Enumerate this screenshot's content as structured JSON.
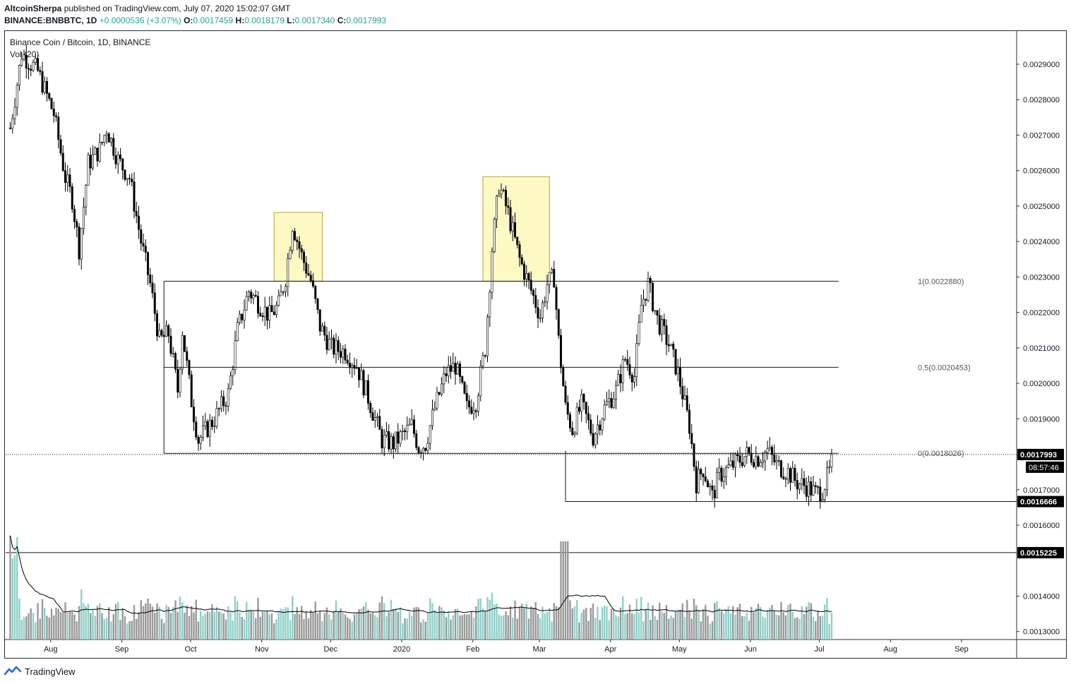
{
  "header": {
    "publisher": "AltcoinSherpa",
    "published_text": " published on TradingView.com, July 07, 2020 15:02:07 GMT"
  },
  "ohlc": {
    "symbol": "BINANCE:BNBBTC, 1D",
    "change": "+0.0000536 (+3.07%)",
    "o_label": "O:",
    "o": "0.0017459",
    "h_label": "H:",
    "h": "0.0018179",
    "l_label": "L:",
    "l": "0.0017340",
    "c_label": "C:",
    "c": "0.0017993"
  },
  "legend": {
    "title": "Binance Coin / Bitcoin, 1D, BINANCE",
    "volume": "Vol (20)"
  },
  "footer": {
    "brand": "TradingView"
  },
  "colors": {
    "up": "#ffffff",
    "down": "#000000",
    "wick": "#000000",
    "vol_up": "#8fd0c8",
    "vol_down": "#9a9a9a",
    "ma": "#000000",
    "highlight": "#fdf9c4",
    "highlight_border": "#b8a33c"
  },
  "chart_data": {
    "type": "candlestick",
    "title": "Binance Coin / Bitcoin, 1D, BINANCE",
    "x_ticks": [
      "Aug",
      "Sep",
      "Oct",
      "Nov",
      "Dec",
      "2020",
      "Feb",
      "Mar",
      "Apr",
      "May",
      "Jun",
      "Jul",
      "Aug",
      "Sep"
    ],
    "y_ticks": [
      "0.0029000",
      "0.0028000",
      "0.0027000",
      "0.0026000",
      "0.0025000",
      "0.0024000",
      "0.0023000",
      "0.0022000",
      "0.0021000",
      "0.0020000",
      "0.0019000",
      "0.0017000",
      "0.0016000",
      "0.0014000",
      "0.0013000"
    ],
    "ylim": [
      0.00126,
      0.00297
    ],
    "price_labels": [
      {
        "value": 0.0017993,
        "text": "0.0017993",
        "style": "current"
      },
      {
        "value": 0.0016666,
        "text": "0.0016666",
        "style": "level"
      },
      {
        "value": 0.0015225,
        "text": "0.0015225",
        "style": "level"
      }
    ],
    "countdown": "08:57:46",
    "fib_levels": [
      {
        "ratio": "1",
        "value": 0.002288,
        "text": "1(0.0022880)"
      },
      {
        "ratio": "0.5",
        "value": 0.0020453,
        "text": "0.5(0.0020453)"
      },
      {
        "ratio": "0",
        "value": 0.0018026,
        "text": "0(0.0018026)"
      }
    ],
    "highlight_boxes": [
      {
        "from": "2019-11-07",
        "to": "2019-11-28",
        "low": 0.002288,
        "high": 0.002482
      },
      {
        "from": "2020-02-06",
        "to": "2020-03-06",
        "low": 0.002288,
        "high": 0.002583
      }
    ],
    "close_series": [
      {
        "date": "2019-07-15",
        "close": 0.00272
      },
      {
        "date": "2019-07-20",
        "close": 0.00293
      },
      {
        "date": "2019-07-27",
        "close": 0.00288
      },
      {
        "date": "2019-08-03",
        "close": 0.00276
      },
      {
        "date": "2019-08-08",
        "close": 0.00258
      },
      {
        "date": "2019-08-11",
        "close": 0.00252
      },
      {
        "date": "2019-08-14",
        "close": 0.00238
      },
      {
        "date": "2019-08-18",
        "close": 0.00262
      },
      {
        "date": "2019-08-23",
        "close": 0.00266
      },
      {
        "date": "2019-08-26",
        "close": 0.00272
      },
      {
        "date": "2019-08-31",
        "close": 0.00263
      },
      {
        "date": "2019-09-05",
        "close": 0.00258
      },
      {
        "date": "2019-09-10",
        "close": 0.0024
      },
      {
        "date": "2019-09-14",
        "close": 0.00228
      },
      {
        "date": "2019-09-18",
        "close": 0.00212
      },
      {
        "date": "2019-09-22",
        "close": 0.00214
      },
      {
        "date": "2019-09-26",
        "close": 0.00198
      },
      {
        "date": "2019-09-28",
        "close": 0.00215
      },
      {
        "date": "2019-10-02",
        "close": 0.00195
      },
      {
        "date": "2019-10-05",
        "close": 0.00184
      },
      {
        "date": "2019-10-12",
        "close": 0.0019
      },
      {
        "date": "2019-10-18",
        "close": 0.00197
      },
      {
        "date": "2019-10-22",
        "close": 0.00215
      },
      {
        "date": "2019-10-27",
        "close": 0.00226
      },
      {
        "date": "2019-11-01",
        "close": 0.00222
      },
      {
        "date": "2019-11-05",
        "close": 0.00219
      },
      {
        "date": "2019-11-09",
        "close": 0.00222
      },
      {
        "date": "2019-11-12",
        "close": 0.0023
      },
      {
        "date": "2019-11-15",
        "close": 0.00245
      },
      {
        "date": "2019-11-19",
        "close": 0.00236
      },
      {
        "date": "2019-11-23",
        "close": 0.00229
      },
      {
        "date": "2019-11-27",
        "close": 0.00216
      },
      {
        "date": "2019-12-02",
        "close": 0.0021
      },
      {
        "date": "2019-12-08",
        "close": 0.00209
      },
      {
        "date": "2019-12-13",
        "close": 0.00205
      },
      {
        "date": "2019-12-18",
        "close": 0.00196
      },
      {
        "date": "2019-12-24",
        "close": 0.00184
      },
      {
        "date": "2019-12-29",
        "close": 0.00183
      },
      {
        "date": "2020-01-03",
        "close": 0.00186
      },
      {
        "date": "2020-01-06",
        "close": 0.00188
      },
      {
        "date": "2020-01-09",
        "close": 0.00182
      },
      {
        "date": "2020-01-12",
        "close": 0.00183
      },
      {
        "date": "2020-01-16",
        "close": 0.00193
      },
      {
        "date": "2020-01-21",
        "close": 0.00203
      },
      {
        "date": "2020-01-25",
        "close": 0.00205
      },
      {
        "date": "2020-01-30",
        "close": 0.00193
      },
      {
        "date": "2020-02-03",
        "close": 0.00195
      },
      {
        "date": "2020-02-07",
        "close": 0.0021
      },
      {
        "date": "2020-02-10",
        "close": 0.00238
      },
      {
        "date": "2020-02-13",
        "close": 0.00256
      },
      {
        "date": "2020-02-17",
        "close": 0.00248
      },
      {
        "date": "2020-02-22",
        "close": 0.00235
      },
      {
        "date": "2020-02-26",
        "close": 0.00228
      },
      {
        "date": "2020-03-02",
        "close": 0.00219
      },
      {
        "date": "2020-03-05",
        "close": 0.00228
      },
      {
        "date": "2020-03-08",
        "close": 0.0023
      },
      {
        "date": "2020-03-10",
        "close": 0.00212
      },
      {
        "date": "2020-03-13",
        "close": 0.00193
      },
      {
        "date": "2020-03-16",
        "close": 0.00187
      },
      {
        "date": "2020-03-20",
        "close": 0.00194
      },
      {
        "date": "2020-03-25",
        "close": 0.00185
      },
      {
        "date": "2020-03-30",
        "close": 0.00193
      },
      {
        "date": "2020-04-04",
        "close": 0.00198
      },
      {
        "date": "2020-04-08",
        "close": 0.00207
      },
      {
        "date": "2020-04-12",
        "close": 0.00202
      },
      {
        "date": "2020-04-15",
        "close": 0.00222
      },
      {
        "date": "2020-04-18",
        "close": 0.00228
      },
      {
        "date": "2020-04-22",
        "close": 0.00218
      },
      {
        "date": "2020-04-27",
        "close": 0.00211
      },
      {
        "date": "2020-05-01",
        "close": 0.00203
      },
      {
        "date": "2020-05-06",
        "close": 0.00188
      },
      {
        "date": "2020-05-09",
        "close": 0.00172
      },
      {
        "date": "2020-05-12",
        "close": 0.00176
      },
      {
        "date": "2020-05-16",
        "close": 0.00168
      },
      {
        "date": "2020-05-19",
        "close": 0.00174
      },
      {
        "date": "2020-05-23",
        "close": 0.00176
      },
      {
        "date": "2020-05-27",
        "close": 0.00178
      },
      {
        "date": "2020-05-31",
        "close": 0.0018
      },
      {
        "date": "2020-06-05",
        "close": 0.00179
      },
      {
        "date": "2020-06-09",
        "close": 0.00181
      },
      {
        "date": "2020-06-13",
        "close": 0.00177
      },
      {
        "date": "2020-06-18",
        "close": 0.00175
      },
      {
        "date": "2020-06-22",
        "close": 0.00172
      },
      {
        "date": "2020-06-26",
        "close": 0.00171
      },
      {
        "date": "2020-06-30",
        "close": 0.00169
      },
      {
        "date": "2020-07-03",
        "close": 0.0017
      },
      {
        "date": "2020-07-06",
        "close": 0.00175
      },
      {
        "date": "2020-07-07",
        "close": 0.0017993
      }
    ]
  }
}
